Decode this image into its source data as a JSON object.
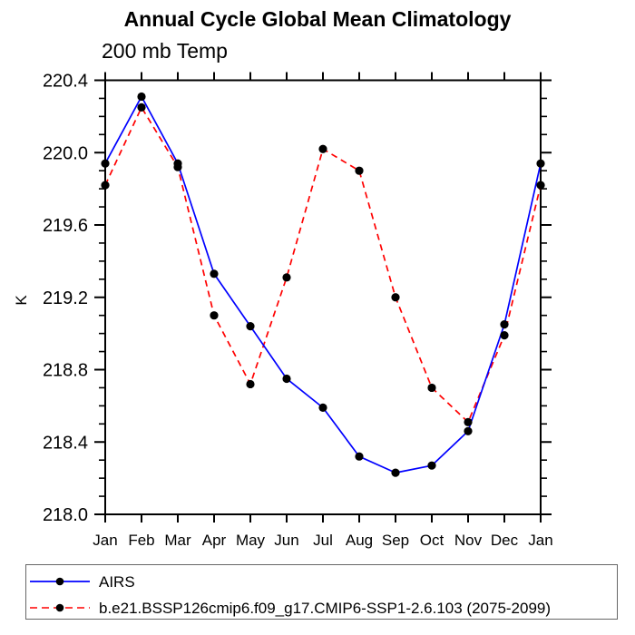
{
  "chart_data": {
    "type": "line",
    "title": "Annual Cycle Global Mean Climatology",
    "subtitle": "200 mb Temp",
    "ylabel": "K",
    "xlabel": "",
    "categories": [
      "Jan",
      "Feb",
      "Mar",
      "Apr",
      "May",
      "Jun",
      "Jul",
      "Aug",
      "Sep",
      "Oct",
      "Nov",
      "Dec",
      "Jan"
    ],
    "ylim": [
      218.0,
      220.4
    ],
    "ytick_labels": [
      "218.0",
      "218.4",
      "218.8",
      "219.2",
      "219.6",
      "220.0",
      "220.4"
    ],
    "ytick_minor_step": 0.1,
    "grid": false,
    "legend_position": "bottom",
    "axis_color": "#000000",
    "series": [
      {
        "name": "AIRS",
        "color": "#0000ff",
        "line_style": "solid",
        "marker": "filled-circle",
        "marker_color": "#000000",
        "values": [
          219.94,
          220.31,
          219.94,
          219.33,
          219.04,
          218.75,
          218.59,
          218.32,
          218.23,
          218.27,
          218.46,
          219.05,
          219.94
        ]
      },
      {
        "name": "b.e21.BSSP126cmip6.f09_g17.CMIP6-SSP1-2.6.103 (2075-2099)",
        "color": "#ff0000",
        "line_style": "dashed",
        "marker": "filled-circle",
        "marker_color": "#000000",
        "values": [
          219.82,
          220.25,
          219.92,
          219.1,
          218.72,
          219.31,
          220.02,
          219.9,
          219.2,
          218.7,
          218.51,
          218.99,
          219.82
        ]
      }
    ]
  }
}
